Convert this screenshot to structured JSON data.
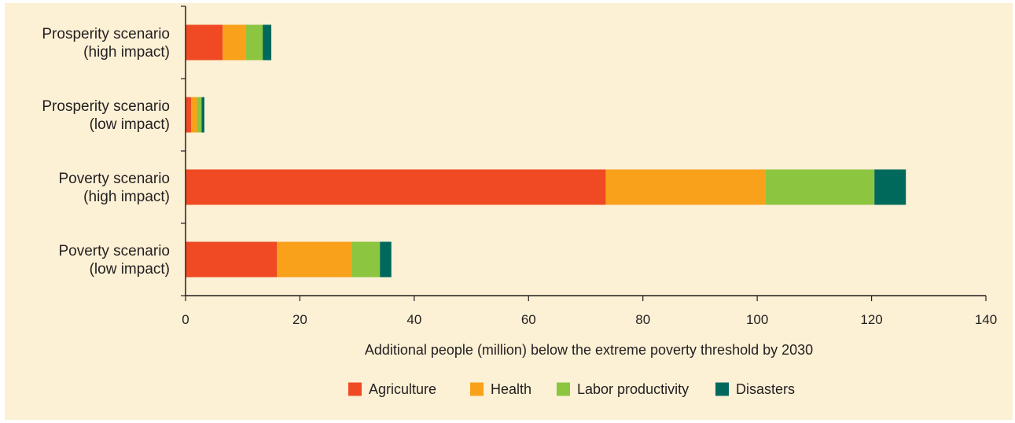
{
  "colors": {
    "background": "#fcf0d5",
    "axis": "#231f20",
    "text": "#231f20"
  },
  "chart_data": {
    "type": "bar",
    "orientation": "horizontal",
    "stacked": true,
    "title": "",
    "xlabel": "Additional people (million) below the extreme poverty threshold by 2030",
    "ylabel": "",
    "xlim": [
      0,
      140
    ],
    "xticks": [
      0,
      20,
      40,
      60,
      80,
      100,
      120,
      140
    ],
    "grid": false,
    "legend_position": "bottom-center",
    "categories": [
      [
        "Prosperity scenario",
        "(high impact)"
      ],
      [
        "Prosperity scenario",
        "(low impact)"
      ],
      [
        "Poverty scenario",
        "(high impact)"
      ],
      [
        "Poverty scenario",
        "(low impact)"
      ]
    ],
    "series": [
      {
        "name": "Agriculture",
        "color": "#ef4a23",
        "values": [
          6.5,
          1.0,
          73.5,
          16.0
        ]
      },
      {
        "name": "Health",
        "color": "#f9a11b",
        "values": [
          4.0,
          1.0,
          28.0,
          13.0
        ]
      },
      {
        "name": "Labor productivity",
        "color": "#8cc53f",
        "values": [
          3.0,
          0.8,
          19.0,
          5.0
        ]
      },
      {
        "name": "Disasters",
        "color": "#00695c",
        "values": [
          1.5,
          0.5,
          5.5,
          2.0
        ]
      }
    ]
  }
}
